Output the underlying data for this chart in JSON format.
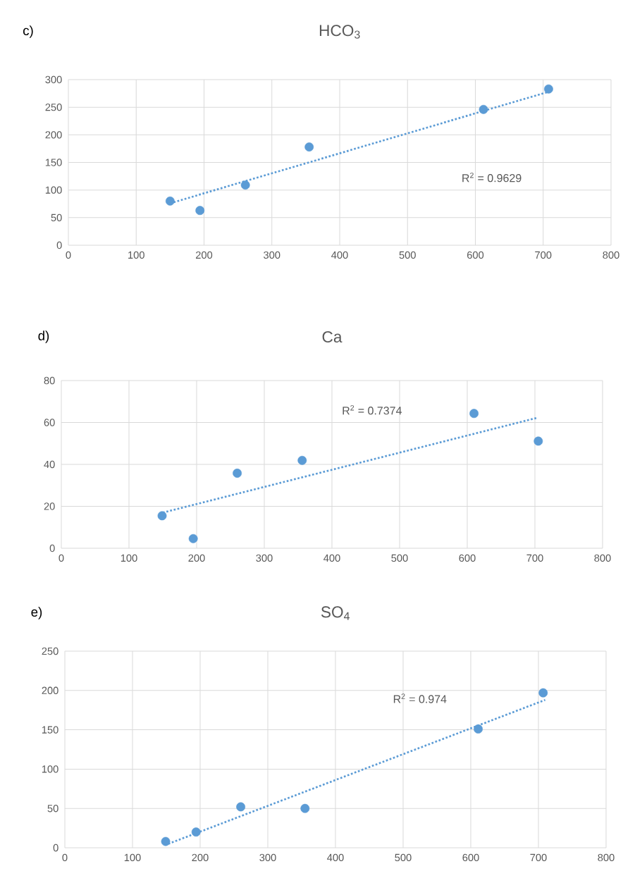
{
  "chart_data": [
    {
      "type": "scatter",
      "title": "HCO$_{3}$",
      "annotations": [
        "c)",
        "R$^{2}$ = 0.9629"
      ],
      "series": [
        {
          "color": "#5b9bd5",
          "marker": "circle",
          "x": [
            150,
            194,
            261,
            355,
            612,
            708
          ],
          "values": [
            80,
            63,
            109,
            178,
            246,
            283
          ]
        },
        {
          "type": "line",
          "color": "#5b9bd5",
          "line_style": "dotted",
          "marker": "none",
          "x": [
            150,
            708
          ],
          "values": [
            76,
            278
          ]
        }
      ],
      "xlim": [
        0,
        800
      ],
      "xticks": [
        0,
        100,
        200,
        300,
        400,
        500,
        600,
        700,
        800
      ],
      "ylim": [
        0,
        300
      ],
      "yticks": [
        0,
        50,
        100,
        150,
        200,
        250,
        300
      ],
      "grid": true
    },
    {
      "type": "scatter",
      "title": "Ca",
      "annotations": [
        "d)",
        "R$^{2}$ = 0.7374"
      ],
      "series": [
        {
          "color": "#5b9bd5",
          "marker": "circle",
          "x": [
            149,
            195,
            260,
            356,
            610,
            705
          ],
          "values": [
            15.5,
            4.6,
            35.8,
            41.9,
            64.3,
            51.1
          ]
        },
        {
          "type": "line",
          "color": "#5b9bd5",
          "line_style": "dotted",
          "marker": "none",
          "x": [
            150,
            703
          ],
          "values": [
            17,
            62.2
          ]
        }
      ],
      "xlim": [
        0,
        800
      ],
      "xticks": [
        0,
        100,
        200,
        300,
        400,
        500,
        600,
        700,
        800
      ],
      "ylim": [
        0,
        80
      ],
      "yticks": [
        0,
        20,
        40,
        60,
        80
      ],
      "grid": true
    },
    {
      "type": "scatter",
      "title": "SO$_{4}$",
      "annotations": [
        "e)",
        "R$^{2}$ = 0.974"
      ],
      "series": [
        {
          "color": "#5b9bd5",
          "marker": "circle",
          "x": [
            149,
            194,
            260,
            355,
            611,
            707
          ],
          "values": [
            8,
            20,
            52,
            50,
            151,
            197
          ]
        },
        {
          "type": "line",
          "color": "#5b9bd5",
          "line_style": "dotted",
          "marker": "none",
          "x": [
            153,
            710
          ],
          "values": [
            5,
            188
          ]
        }
      ],
      "xlim": [
        0,
        800
      ],
      "xticks": [
        0,
        100,
        200,
        300,
        400,
        500,
        600,
        700,
        800
      ],
      "ylim": [
        0,
        250
      ],
      "yticks": [
        0,
        50,
        100,
        150,
        200,
        250
      ],
      "grid": true
    }
  ]
}
